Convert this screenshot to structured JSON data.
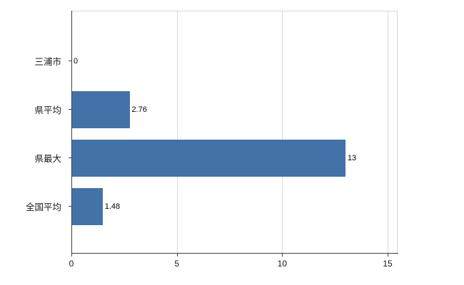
{
  "chart_data": {
    "type": "bar",
    "orientation": "horizontal",
    "title": "",
    "xlabel": "",
    "ylabel": "",
    "categories": [
      "三浦市",
      "県平均",
      "県最大",
      "全国平均"
    ],
    "values": [
      0,
      2.76,
      13,
      1.48
    ],
    "value_labels": [
      "0",
      "2.76",
      "13",
      "1.48"
    ],
    "xlim": [
      0,
      15
    ],
    "xticks": [
      0,
      5,
      10,
      15
    ],
    "xtick_labels": [
      "0",
      "5",
      "10",
      "15"
    ],
    "grid": true,
    "legend": false,
    "bar_color": "#4272a8",
    "gridline_color": "#d9d9d9",
    "axis_color": "#404040",
    "background_color": "#ffffff"
  }
}
